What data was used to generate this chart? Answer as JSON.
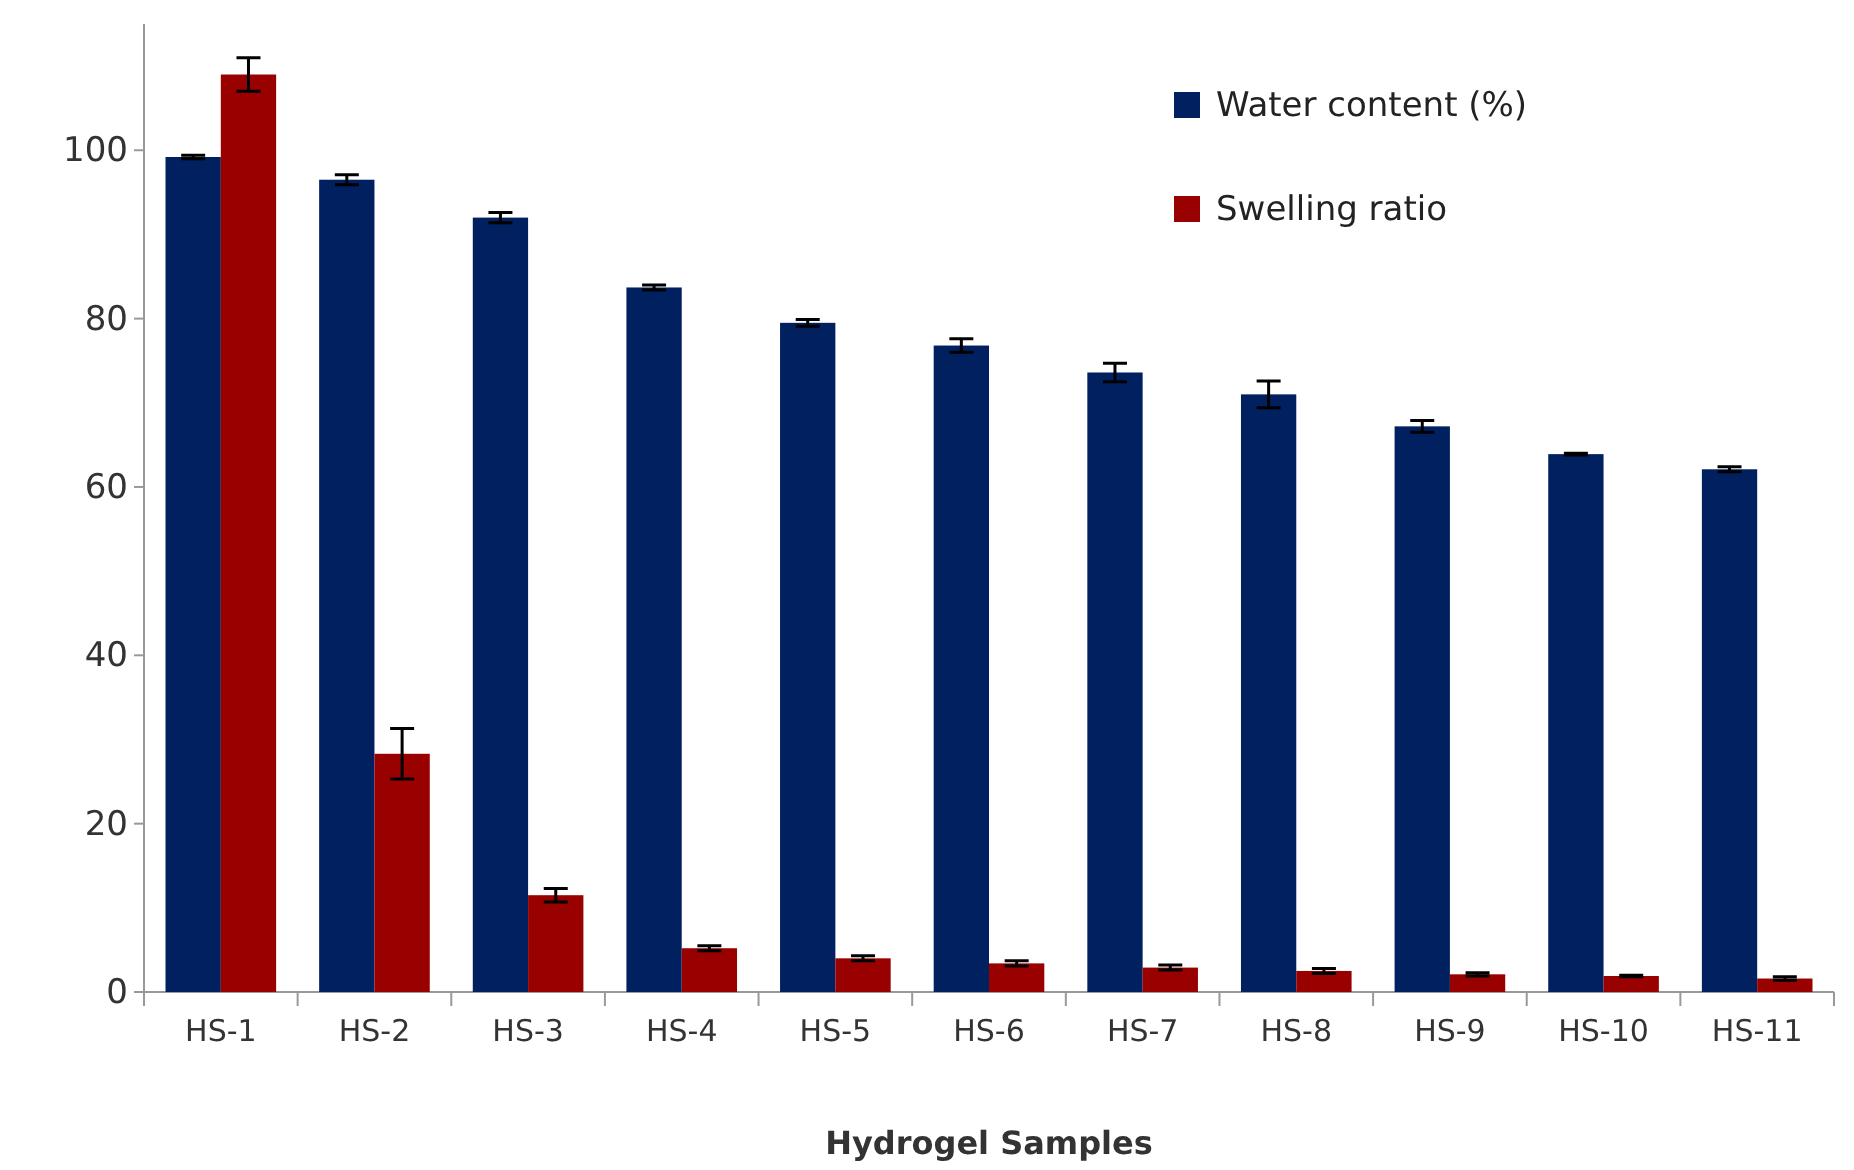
{
  "chart_data": {
    "type": "bar",
    "xlabel": "Hydrogel Samples",
    "categories": [
      "HS-1",
      "HS-2",
      "HS-3",
      "HS-4",
      "HS-5",
      "HS-6",
      "HS-7",
      "HS-8",
      "HS-9",
      "HS-10",
      "HS-11"
    ],
    "series": [
      {
        "name": "Water content (%)",
        "color": "#002060",
        "values": [
          99.2,
          96.5,
          92,
          83.7,
          79.5,
          76.8,
          73.6,
          71,
          67.2,
          63.9,
          62.1
        ],
        "errors": [
          0.2,
          0.6,
          0.6,
          0.3,
          0.4,
          0.8,
          1.1,
          1.6,
          0.7,
          0.1,
          0.3
        ]
      },
      {
        "name": "Swelling ratio",
        "color": "#990000",
        "values": [
          109,
          28.3,
          11.5,
          5.2,
          4,
          3.4,
          2.9,
          2.5,
          2.1,
          1.9,
          1.6
        ],
        "errors": [
          2,
          3,
          0.8,
          0.3,
          0.3,
          0.3,
          0.3,
          0.3,
          0.2,
          0.1,
          0.2
        ]
      }
    ],
    "ylim": [
      0,
      115
    ],
    "yticks": [
      0,
      20,
      40,
      60,
      80,
      100
    ],
    "grid": false,
    "legend": "top right"
  }
}
